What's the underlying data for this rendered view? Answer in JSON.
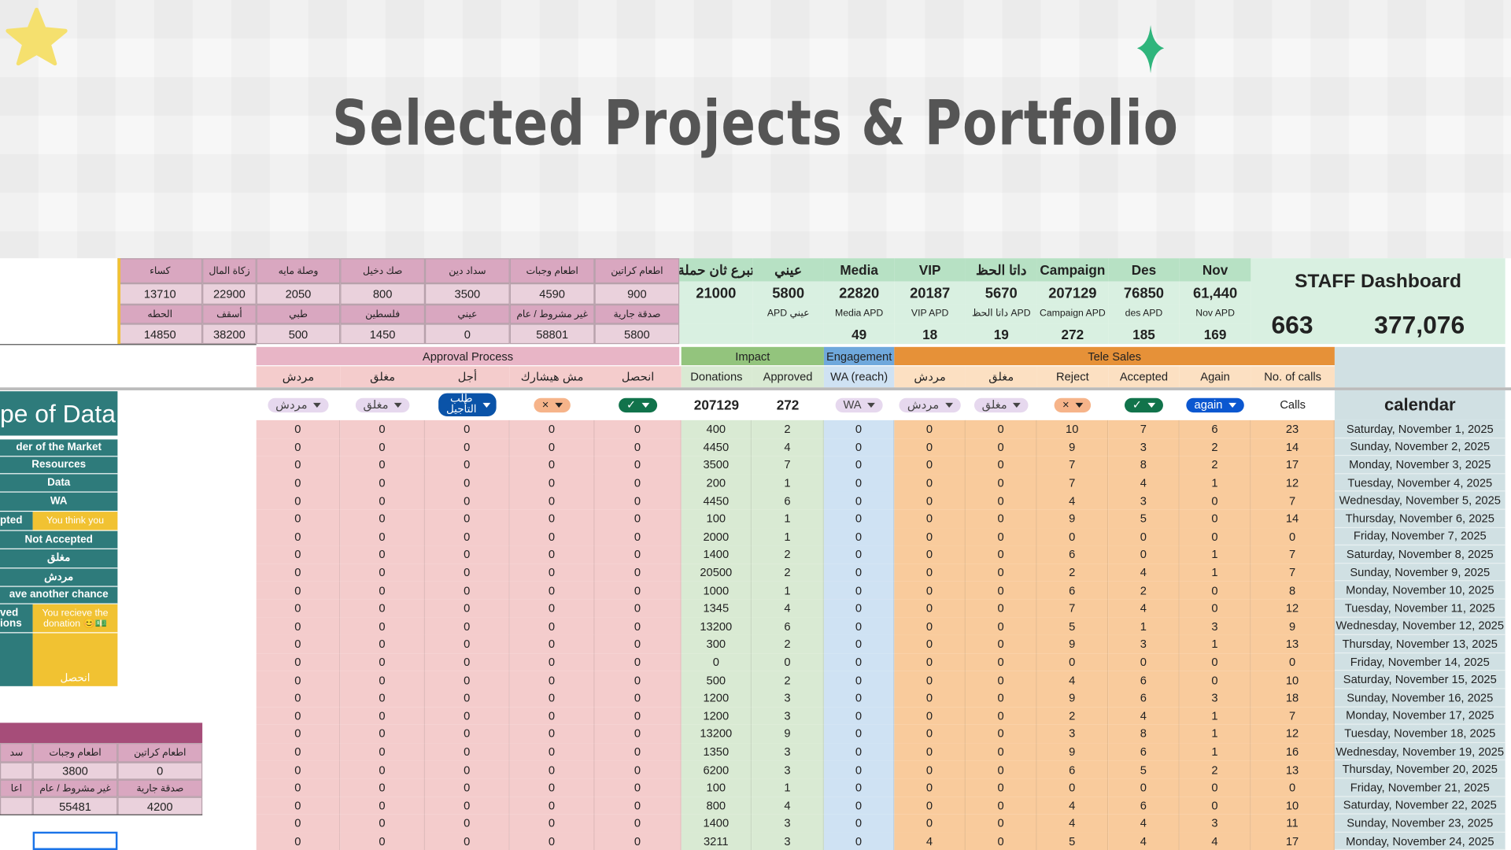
{
  "header": {
    "title": "Selected Projects & Portfolio"
  },
  "donation_summary": {
    "columns": [
      {
        "label": "كساء",
        "value": 13710,
        "sub_label": "الحطه",
        "sub_value": 14850
      },
      {
        "label": "زكاة المال",
        "value": 22900,
        "sub_label": "أسقف",
        "sub_value": 38200
      },
      {
        "label": "وصلة مايه",
        "value": 2050,
        "sub_label": "طبي",
        "sub_value": 500
      },
      {
        "label": "صك دخيل",
        "value": 800,
        "sub_label": "فلسطين",
        "sub_value": 1450
      },
      {
        "label": "سداد دين",
        "value": 3500,
        "sub_label": "عيني",
        "sub_value": 0
      },
      {
        "label": "اطعام وجبات",
        "value": 4590,
        "sub_label": "غير مشروط / عام",
        "sub_value": 58801
      },
      {
        "label": "اطعام كراتين",
        "value": 900,
        "sub_label": "صدقة جارية",
        "sub_value": 5800
      }
    ]
  },
  "campaign_summary": {
    "columns": [
      {
        "label": "تبرع ثان حملة",
        "value": 21000
      },
      {
        "label": "عيني",
        "value": 5800,
        "sub_label": "APD عيني"
      },
      {
        "label": "Media",
        "value": 22820,
        "sub_label": "Media APD",
        "sub_value": 49
      },
      {
        "label": "VIP",
        "value": 20187,
        "sub_label": "VIP APD",
        "sub_value": 18
      },
      {
        "label": "داتا الحظ",
        "value": 5670,
        "sub_label": "داتا الحظ APD",
        "sub_value": 19
      },
      {
        "label": "Campaign",
        "value": 207129,
        "sub_label": "Campaign APD",
        "sub_value": 272
      },
      {
        "label": "Des",
        "value": 76850,
        "sub_label": "des APD",
        "sub_value": 185
      },
      {
        "label": "Nov",
        "value": "61,440",
        "sub_label": "Nov APD",
        "sub_value": 169
      }
    ]
  },
  "staff_dashboard": {
    "title": "STAFF Dashboard",
    "values": [
      663,
      "377,076"
    ]
  },
  "table": {
    "groups": [
      "Approval Process",
      "Impact",
      "Engagement",
      "Tele Sales"
    ],
    "columns": [
      "مردش",
      "مغلق",
      "أجل",
      "مش هيشارك",
      "انحصل",
      "Donations",
      "Approved",
      "WA (reach)",
      "مردش",
      "مغلق",
      "Reject",
      "Accepted",
      "Again",
      "No. of calls"
    ],
    "filters": [
      "مردش",
      "مغلق",
      "طلب التأجيل",
      "×",
      "✓",
      207129,
      272,
      "WA",
      "مردش",
      "مغلق",
      "×",
      "✓",
      "again",
      "Calls"
    ],
    "calendar_label": "calendar",
    "rows": [
      [
        0,
        0,
        0,
        0,
        0,
        400,
        2,
        0,
        0,
        0,
        10,
        7,
        6,
        23,
        "Saturday, November 1, 2025"
      ],
      [
        0,
        0,
        0,
        0,
        0,
        4450,
        4,
        0,
        0,
        0,
        9,
        3,
        2,
        14,
        "Sunday, November 2, 2025"
      ],
      [
        0,
        0,
        0,
        0,
        0,
        3500,
        7,
        0,
        0,
        0,
        7,
        8,
        2,
        17,
        "Monday, November 3, 2025"
      ],
      [
        0,
        0,
        0,
        0,
        0,
        200,
        1,
        0,
        0,
        0,
        7,
        4,
        1,
        12,
        "Tuesday, November 4, 2025"
      ],
      [
        0,
        0,
        0,
        0,
        0,
        4450,
        6,
        0,
        0,
        0,
        4,
        3,
        0,
        7,
        "Wednesday, November 5, 2025"
      ],
      [
        0,
        0,
        0,
        0,
        0,
        100,
        1,
        0,
        0,
        0,
        9,
        5,
        0,
        14,
        "Thursday, November 6, 2025"
      ],
      [
        0,
        0,
        0,
        0,
        0,
        2000,
        1,
        0,
        0,
        0,
        0,
        0,
        0,
        0,
        "Friday, November 7, 2025"
      ],
      [
        0,
        0,
        0,
        0,
        0,
        1400,
        2,
        0,
        0,
        0,
        6,
        0,
        1,
        7,
        "Saturday, November 8, 2025"
      ],
      [
        0,
        0,
        0,
        0,
        0,
        20500,
        2,
        0,
        0,
        0,
        2,
        4,
        1,
        7,
        "Sunday, November 9, 2025"
      ],
      [
        0,
        0,
        0,
        0,
        0,
        1000,
        1,
        0,
        0,
        0,
        6,
        2,
        0,
        8,
        "Monday, November 10, 2025"
      ],
      [
        0,
        0,
        0,
        0,
        0,
        1345,
        4,
        0,
        0,
        0,
        7,
        4,
        0,
        12,
        "Tuesday, November 11, 2025"
      ],
      [
        0,
        0,
        0,
        0,
        0,
        13200,
        6,
        0,
        0,
        0,
        5,
        1,
        3,
        9,
        "Wednesday, November 12, 2025"
      ],
      [
        0,
        0,
        0,
        0,
        0,
        300,
        2,
        0,
        0,
        0,
        9,
        3,
        1,
        13,
        "Thursday, November 13, 2025"
      ],
      [
        0,
        0,
        0,
        0,
        0,
        0,
        0,
        0,
        0,
        0,
        0,
        0,
        0,
        0,
        "Friday, November 14, 2025"
      ],
      [
        0,
        0,
        0,
        0,
        0,
        500,
        2,
        0,
        0,
        0,
        4,
        6,
        0,
        10,
        "Saturday, November 15, 2025"
      ],
      [
        0,
        0,
        0,
        0,
        0,
        1200,
        3,
        0,
        0,
        0,
        9,
        6,
        3,
        18,
        "Sunday, November 16, 2025"
      ],
      [
        0,
        0,
        0,
        0,
        0,
        1200,
        3,
        0,
        0,
        0,
        2,
        4,
        1,
        7,
        "Monday, November 17, 2025"
      ],
      [
        0,
        0,
        0,
        0,
        0,
        13200,
        9,
        0,
        0,
        0,
        3,
        8,
        1,
        12,
        "Tuesday, November 18, 2025"
      ],
      [
        0,
        0,
        0,
        0,
        0,
        1350,
        3,
        0,
        0,
        0,
        9,
        6,
        1,
        16,
        "Wednesday, November 19, 2025"
      ],
      [
        0,
        0,
        0,
        0,
        0,
        6200,
        3,
        0,
        0,
        0,
        6,
        5,
        2,
        13,
        "Thursday, November 20, 2025"
      ],
      [
        0,
        0,
        0,
        0,
        0,
        100,
        1,
        0,
        0,
        0,
        0,
        0,
        0,
        0,
        "Friday, November 21, 2025"
      ],
      [
        0,
        0,
        0,
        0,
        0,
        800,
        4,
        0,
        0,
        0,
        4,
        6,
        0,
        10,
        "Saturday, November 22, 2025"
      ],
      [
        0,
        0,
        0,
        0,
        0,
        1400,
        3,
        0,
        0,
        0,
        4,
        4,
        3,
        11,
        "Sunday, November 23, 2025"
      ],
      [
        0,
        0,
        0,
        0,
        0,
        3211,
        3,
        0,
        4,
        0,
        5,
        4,
        4,
        17,
        "Monday, November 24, 2025"
      ]
    ]
  },
  "left_panel": {
    "title": "pe of Data",
    "items": [
      {
        "text": "der of the Market"
      },
      {
        "text": "Resources"
      },
      {
        "text": "Data"
      },
      {
        "text": "WA"
      },
      {
        "text": "pted",
        "note": "You think you"
      },
      {
        "text": "Not Accepted"
      },
      {
        "text": "مغلق"
      },
      {
        "text": "مردش"
      },
      {
        "text": "ave another chance"
      },
      {
        "text": "ved\nions",
        "note": "You recieve the donation 😊💵"
      }
    ],
    "final_note": "انحصل"
  },
  "mini_table": {
    "rows": [
      [
        "سد",
        "اطعام وجبات",
        "اطعام كراتين"
      ],
      [
        null,
        3800,
        0
      ],
      [
        "اعا",
        "غير مشروط / عام",
        "صدقة جارية"
      ],
      [
        null,
        55481,
        4200
      ]
    ]
  }
}
